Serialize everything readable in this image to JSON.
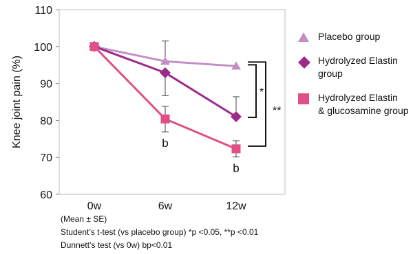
{
  "chart_data": {
    "type": "line",
    "ylabel": "Knee joint pain (%)",
    "xlabel": "",
    "categories": [
      "0w",
      "6w",
      "12w"
    ],
    "ylim": [
      60,
      110
    ],
    "yticks": [
      60,
      70,
      80,
      90,
      100,
      110
    ],
    "grid": false,
    "legend_position": "right",
    "series": [
      {
        "name": "Placebo group",
        "values": [
          100,
          96,
          94.7
        ],
        "color": "#c48ec4",
        "marker": "triangle",
        "error_plus": [
          0,
          5.5,
          0
        ],
        "error_minus": [
          0,
          0,
          0
        ]
      },
      {
        "name": "Hydrolyzed Elastin group",
        "values": [
          100,
          92.9,
          81
        ],
        "color": "#9b2a8a",
        "marker": "diamond",
        "error_plus": [
          0,
          0,
          5.4
        ],
        "error_minus": [
          0,
          6.2,
          0
        ]
      },
      {
        "name": "Hydrolyzed Elastin & glucosamine group",
        "values": [
          100,
          80.4,
          72.3
        ],
        "color": "#e04f85",
        "marker": "square",
        "error_plus": [
          0,
          3.4,
          2.2
        ],
        "error_minus": [
          0,
          3.5,
          2.2
        ]
      }
    ],
    "annotations": {
      "b_labels": [
        {
          "category": "6w",
          "text": "b"
        },
        {
          "category": "12w",
          "text": "b"
        }
      ],
      "sig_inner": "*",
      "sig_outer": "**"
    }
  },
  "legend": {
    "items": [
      {
        "lines": [
          "Placebo group"
        ]
      },
      {
        "lines": [
          "Hydrolyzed Elastin",
          "group"
        ]
      },
      {
        "lines": [
          "Hydrolyzed Elastin",
          "& glucosamine group"
        ]
      }
    ]
  },
  "notes": {
    "mean_se": "(Mean ± SE)",
    "ttest": "Student’s t-test (vs placebo group)  *p <0.05, **p <0.01",
    "dunnett": "Dunnett’s test (vs 0w)   bp<0.01"
  }
}
